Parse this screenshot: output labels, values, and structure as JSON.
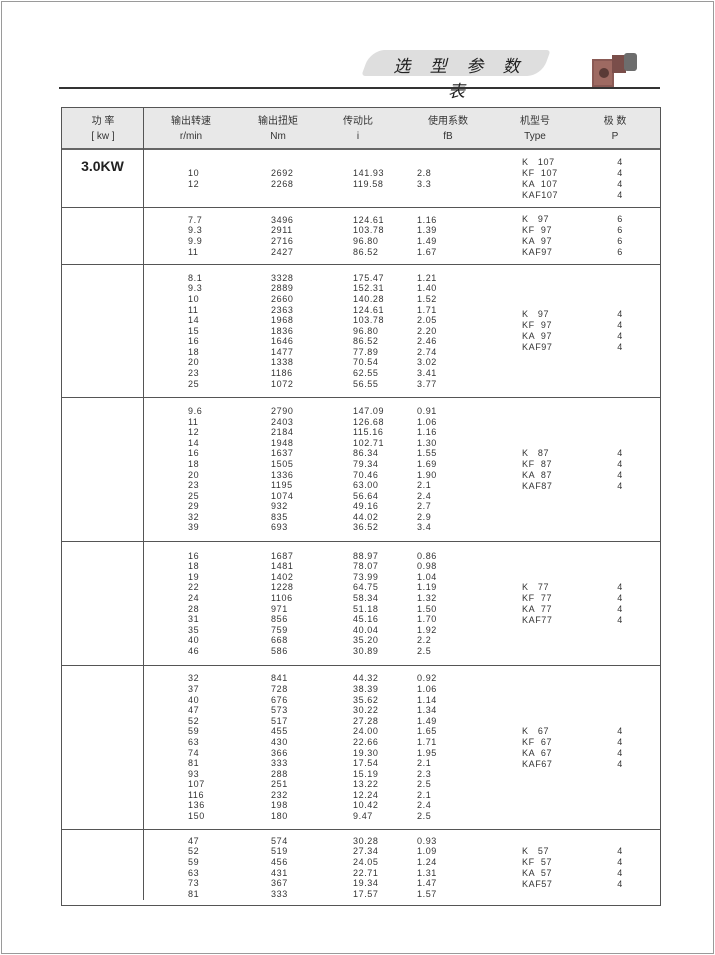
{
  "header": {
    "title": "选 型 参 数 表",
    "product_image": "gearmotor-image"
  },
  "table": {
    "columns": [
      {
        "label": "功 率",
        "unit": "[ kw ]"
      },
      {
        "label": "输出转速",
        "unit": "r/min"
      },
      {
        "label": "输出扭矩",
        "unit": "Nm"
      },
      {
        "label": "传动比",
        "unit": "i"
      },
      {
        "label": "使用系数",
        "unit": "fB"
      },
      {
        "label": "机型号",
        "unit": "Type"
      },
      {
        "label": "极 数",
        "unit": "P"
      }
    ],
    "power": "3.0KW",
    "sections": [
      {
        "rows": [
          [
            "10",
            "2692",
            "141.93",
            "2.8"
          ],
          [
            "12",
            "2268",
            "119.58",
            "3.3"
          ]
        ],
        "types": [
          [
            "K   107",
            "4"
          ],
          [
            "KF  107",
            "4"
          ],
          [
            "KA  107",
            "4"
          ],
          [
            "KAF107",
            "4"
          ]
        ]
      },
      {
        "rows": [
          [
            "7.7",
            "3496",
            "124.61",
            "1.16"
          ],
          [
            "9.3",
            "2911",
            "103.78",
            "1.39"
          ],
          [
            "9.9",
            "2716",
            "96.80",
            "1.49"
          ],
          [
            "11",
            "2427",
            "86.52",
            "1.67"
          ]
        ],
        "types": [
          [
            "K   97",
            "6"
          ],
          [
            "KF  97",
            "6"
          ],
          [
            "KA  97",
            "6"
          ],
          [
            "KAF97",
            "6"
          ]
        ]
      },
      {
        "rows": [
          [
            "8.1",
            "3328",
            "175.47",
            "1.21"
          ],
          [
            "9.3",
            "2889",
            "152.31",
            "1.40"
          ],
          [
            "10",
            "2660",
            "140.28",
            "1.52"
          ],
          [
            "11",
            "2363",
            "124.61",
            "1.71"
          ],
          [
            "14",
            "1968",
            "103.78",
            "2.05"
          ],
          [
            "15",
            "1836",
            "96.80",
            "2.20"
          ],
          [
            "16",
            "1646",
            "86.52",
            "2.46"
          ],
          [
            "18",
            "1477",
            "77.89",
            "2.74"
          ],
          [
            "20",
            "1338",
            "70.54",
            "3.02"
          ],
          [
            "23",
            "1186",
            "62.55",
            "3.41"
          ],
          [
            "25",
            "1072",
            "56.55",
            "3.77"
          ]
        ],
        "types": [
          [
            "K   97",
            "4"
          ],
          [
            "KF  97",
            "4"
          ],
          [
            "KA  97",
            "4"
          ],
          [
            "KAF97",
            "4"
          ]
        ]
      },
      {
        "rows": [
          [
            "9.6",
            "2790",
            "147.09",
            "0.91"
          ],
          [
            "11",
            "2403",
            "126.68",
            "1.06"
          ],
          [
            "12",
            "2184",
            "115.16",
            "1.16"
          ],
          [
            "14",
            "1948",
            "102.71",
            "1.30"
          ],
          [
            "16",
            "1637",
            "86.34",
            "1.55"
          ],
          [
            "18",
            "1505",
            "79.34",
            "1.69"
          ],
          [
            "20",
            "1336",
            "70.46",
            "1.90"
          ],
          [
            "23",
            "1195",
            "63.00",
            "2.1"
          ],
          [
            "25",
            "1074",
            "56.64",
            "2.4"
          ],
          [
            "29",
            "932",
            "49.16",
            "2.7"
          ],
          [
            "32",
            "835",
            "44.02",
            "2.9"
          ],
          [
            "39",
            "693",
            "36.52",
            "3.4"
          ]
        ],
        "types": [
          [
            "K   87",
            "4"
          ],
          [
            "KF  87",
            "4"
          ],
          [
            "KA  87",
            "4"
          ],
          [
            "KAF87",
            "4"
          ]
        ]
      },
      {
        "rows": [
          [
            "16",
            "1687",
            "88.97",
            "0.86"
          ],
          [
            "18",
            "1481",
            "78.07",
            "0.98"
          ],
          [
            "19",
            "1402",
            "73.99",
            "1.04"
          ],
          [
            "22",
            "1228",
            "64.75",
            "1.19"
          ],
          [
            "24",
            "1106",
            "58.34",
            "1.32"
          ],
          [
            "28",
            "971",
            "51.18",
            "1.50"
          ],
          [
            "31",
            "856",
            "45.16",
            "1.70"
          ],
          [
            "35",
            "759",
            "40.04",
            "1.92"
          ],
          [
            "40",
            "668",
            "35.20",
            "2.2"
          ],
          [
            "46",
            "586",
            "30.89",
            "2.5"
          ]
        ],
        "types": [
          [
            "K   77",
            "4"
          ],
          [
            "KF  77",
            "4"
          ],
          [
            "KA  77",
            "4"
          ],
          [
            "KAF77",
            "4"
          ]
        ]
      },
      {
        "rows": [
          [
            "32",
            "841",
            "44.32",
            "0.92"
          ],
          [
            "37",
            "728",
            "38.39",
            "1.06"
          ],
          [
            "40",
            "676",
            "35.62",
            "1.14"
          ],
          [
            "47",
            "573",
            "30.22",
            "1.34"
          ],
          [
            "52",
            "517",
            "27.28",
            "1.49"
          ],
          [
            "59",
            "455",
            "24.00",
            "1.65"
          ],
          [
            "63",
            "430",
            "22.66",
            "1.71"
          ],
          [
            "74",
            "366",
            "19.30",
            "1.95"
          ],
          [
            "81",
            "333",
            "17.54",
            "2.1"
          ],
          [
            "93",
            "288",
            "15.19",
            "2.3"
          ],
          [
            "107",
            "251",
            "13.22",
            "2.5"
          ],
          [
            "116",
            "232",
            "12.24",
            "2.1"
          ],
          [
            "136",
            "198",
            "10.42",
            "2.4"
          ],
          [
            "150",
            "180",
            "9.47",
            "2.5"
          ]
        ],
        "types": [
          [
            "K   67",
            "4"
          ],
          [
            "KF  67",
            "4"
          ],
          [
            "KA  67",
            "4"
          ],
          [
            "KAF67",
            "4"
          ]
        ]
      },
      {
        "rows": [
          [
            "47",
            "574",
            "30.28",
            "0.93"
          ],
          [
            "52",
            "519",
            "27.34",
            "1.09"
          ],
          [
            "59",
            "456",
            "24.05",
            "1.24"
          ],
          [
            "63",
            "431",
            "22.71",
            "1.31"
          ],
          [
            "73",
            "367",
            "19.34",
            "1.47"
          ],
          [
            "81",
            "333",
            "17.57",
            "1.57"
          ]
        ],
        "types": [
          [
            "K   57",
            "4"
          ],
          [
            "KF  57",
            "4"
          ],
          [
            "KA  57",
            "4"
          ],
          [
            "KAF57",
            "4"
          ]
        ]
      }
    ]
  }
}
